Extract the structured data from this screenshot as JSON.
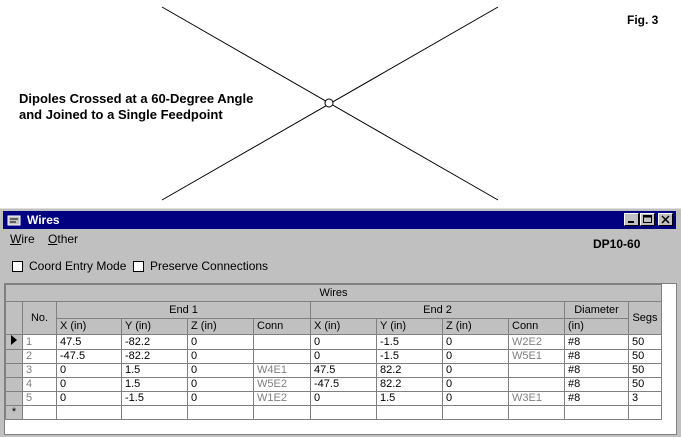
{
  "figure": {
    "label": "Fig. 3",
    "caption_line1": "Dipoles Crossed at a 60-Degree Angle",
    "caption_line2": "and Joined to a Single Feedpoint"
  },
  "window": {
    "title": "Wires",
    "menu": [
      "Wire",
      "Other"
    ],
    "model_name": "DP10-60",
    "checkboxes": [
      {
        "label": "Coord Entry Mode",
        "checked": false
      },
      {
        "label": "Preserve Connections",
        "checked": false
      }
    ]
  },
  "grid": {
    "caption": "Wires",
    "headers": {
      "no": "No.",
      "end1": "End 1",
      "end2": "End 2",
      "diameter": "Diameter",
      "segs": "Segs"
    },
    "subheaders": [
      "X (in)",
      "Y (in)",
      "Z (in)",
      "Conn",
      "X (in)",
      "Y (in)",
      "Z (in)",
      "Conn",
      "(in)"
    ],
    "rows": [
      {
        "no": "1",
        "x1": "47.5",
        "y1": "-82.2",
        "z1": "0",
        "c1": "",
        "x2": "0",
        "y2": "-1.5",
        "z2": "0",
        "c2": "W2E2",
        "dia": "#8",
        "segs": "50"
      },
      {
        "no": "2",
        "x1": "-47.5",
        "y1": "-82.2",
        "z1": "0",
        "c1": "",
        "x2": "0",
        "y2": "-1.5",
        "z2": "0",
        "c2": "W5E1",
        "dia": "#8",
        "segs": "50"
      },
      {
        "no": "3",
        "x1": "0",
        "y1": "1.5",
        "z1": "0",
        "c1": "W4E1",
        "x2": "47.5",
        "y2": "82.2",
        "z2": "0",
        "c2": "",
        "dia": "#8",
        "segs": "50"
      },
      {
        "no": "4",
        "x1": "0",
        "y1": "1.5",
        "z1": "0",
        "c1": "W5E2",
        "x2": "-47.5",
        "y2": "82.2",
        "z2": "0",
        "c2": "",
        "dia": "#8",
        "segs": "50"
      },
      {
        "no": "5",
        "x1": "0",
        "y1": "-1.5",
        "z1": "0",
        "c1": "W1E2",
        "x2": "0",
        "y2": "1.5",
        "z2": "0",
        "c2": "W3E1",
        "dia": "#8",
        "segs": "3"
      }
    ],
    "new_row_marker": "*"
  }
}
